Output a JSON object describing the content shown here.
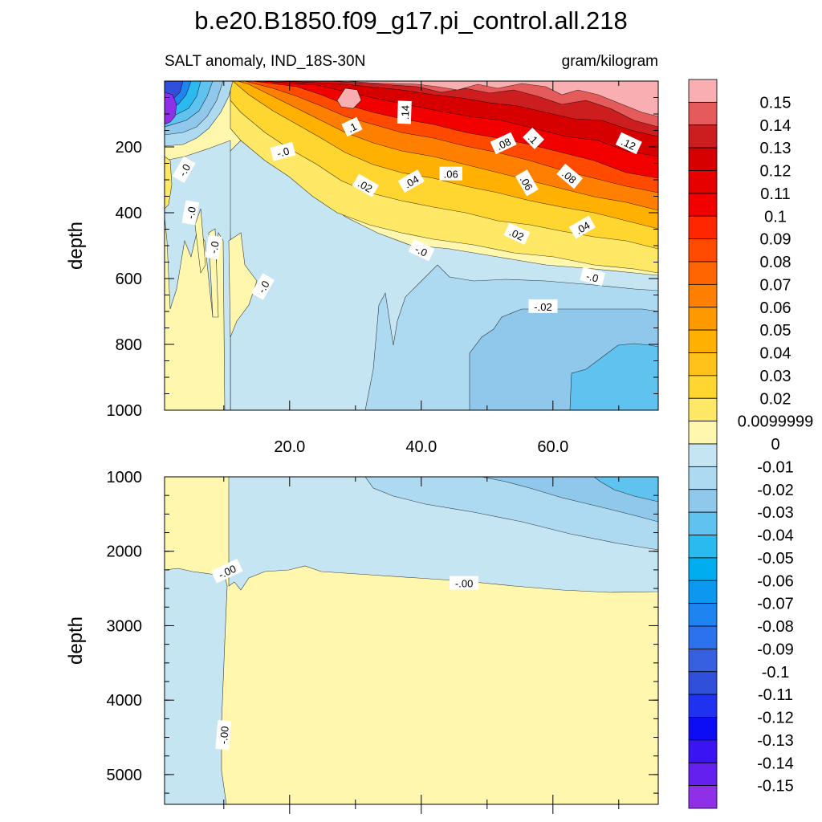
{
  "chart_data": {
    "type": "heatmap",
    "title": "b.e20.B1850.f09_g17.pi_control.all.218",
    "subtitle_left": "SALT anomaly, IND_18S-30N",
    "subtitle_right": "gram/kilogram",
    "x": {
      "range": [
        1,
        76
      ],
      "ticks": [
        20,
        40,
        60
      ],
      "tick_labels": [
        "20.0",
        "40.0",
        "60.0"
      ],
      "label": ""
    },
    "upper_panel": {
      "ylabel": "depth",
      "ylim": [
        0,
        1000
      ],
      "y_reversed": true,
      "y_ticks": [
        200,
        400,
        600,
        800,
        1000
      ],
      "y_tick_labels": [
        "200",
        "400",
        "600",
        "800",
        "1000"
      ]
    },
    "lower_panel": {
      "ylabel": "depth",
      "ylim": [
        1000,
        5400
      ],
      "y_reversed": true,
      "y_ticks": [
        1000,
        2000,
        3000,
        4000,
        5000
      ],
      "y_tick_labels": [
        "1000",
        "2000",
        "3000",
        "4000",
        "5000"
      ]
    },
    "colorbar": {
      "levels": [
        "0.15",
        "0.14",
        "0.13",
        "0.12",
        "0.11",
        "0.1",
        "0.09",
        "0.08",
        "0.07",
        "0.06",
        "0.05",
        "0.04",
        "0.03",
        "0.02",
        "0.0099999",
        "0",
        "-0.01",
        "-0.02",
        "-0.03",
        "-0.04",
        "-0.05",
        "-0.06",
        "-0.07",
        "-0.08",
        "-0.09",
        "-0.1",
        "-0.11",
        "-0.12",
        "-0.13",
        "-0.14",
        "-0.15"
      ],
      "colors": [
        "#F9AFB2",
        "#E55A5A",
        "#CC1E1E",
        "#D60000",
        "#E60000",
        "#F20000",
        "#FF2600",
        "#FF4A00",
        "#FF6600",
        "#FF8000",
        "#FF9900",
        "#FFB000",
        "#FFC21A",
        "#FFD530",
        "#FFE866",
        "#FFF7AE",
        "#C6E5F3",
        "#ADDAF0",
        "#8FC8EB",
        "#5FC2EF",
        "#2ABAF0",
        "#00AEEF",
        "#0D98F0",
        "#1E84F0",
        "#2C72EE",
        "#3760E0",
        "#3050DC",
        "#2032F0",
        "#0D0DF5",
        "#3A14F2",
        "#6420EE",
        "#8F30E8"
      ]
    },
    "contour_labels_upper": [
      {
        "text": ".1",
        "x": 29.5,
        "depth": 140,
        "rot": -25
      },
      {
        "text": ".14",
        "x": 37.5,
        "depth": 95,
        "rot": -88
      },
      {
        "text": "-.0",
        "x": 19,
        "depth": 215,
        "rot": -15
      },
      {
        "text": ".08",
        "x": 52.5,
        "depth": 190,
        "rot": -25
      },
      {
        "text": ".1",
        "x": 57,
        "depth": 175,
        "rot": 45
      },
      {
        "text": ".12",
        "x": 71.5,
        "depth": 190,
        "rot": 25
      },
      {
        "text": "-.0",
        "x": 4,
        "depth": 270,
        "rot": -60
      },
      {
        "text": ".02",
        "x": 31.5,
        "depth": 318,
        "rot": 30
      },
      {
        "text": ".04",
        "x": 38.5,
        "depth": 305,
        "rot": -30
      },
      {
        "text": ".06",
        "x": 44.5,
        "depth": 282,
        "rot": 0
      },
      {
        "text": ".06",
        "x": 56,
        "depth": 310,
        "rot": 60
      },
      {
        "text": ".08",
        "x": 62.5,
        "depth": 290,
        "rot": 40
      },
      {
        "text": "-.0",
        "x": 5,
        "depth": 400,
        "rot": -80
      },
      {
        "text": ".04",
        "x": 64.5,
        "depth": 445,
        "rot": -30
      },
      {
        "text": ".02",
        "x": 54.5,
        "depth": 465,
        "rot": 25
      },
      {
        "text": "-.0",
        "x": 8.5,
        "depth": 505,
        "rot": -80
      },
      {
        "text": "-.0",
        "x": 40,
        "depth": 515,
        "rot": 25
      },
      {
        "text": "-.0",
        "x": 16,
        "depth": 625,
        "rot": -60
      },
      {
        "text": "-.0",
        "x": 66,
        "depth": 595,
        "rot": 15
      },
      {
        "text": "-.02",
        "x": 58.5,
        "depth": 685,
        "rot": 0
      }
    ],
    "contour_labels_lower": [
      {
        "text": "-.00",
        "x": 10.5,
        "depth": 2270,
        "rot": -25
      },
      {
        "text": "-.00",
        "x": 46.5,
        "depth": 2430,
        "rot": 0
      },
      {
        "text": "-.00",
        "x": 10,
        "depth": 4470,
        "rot": -85
      }
    ]
  }
}
